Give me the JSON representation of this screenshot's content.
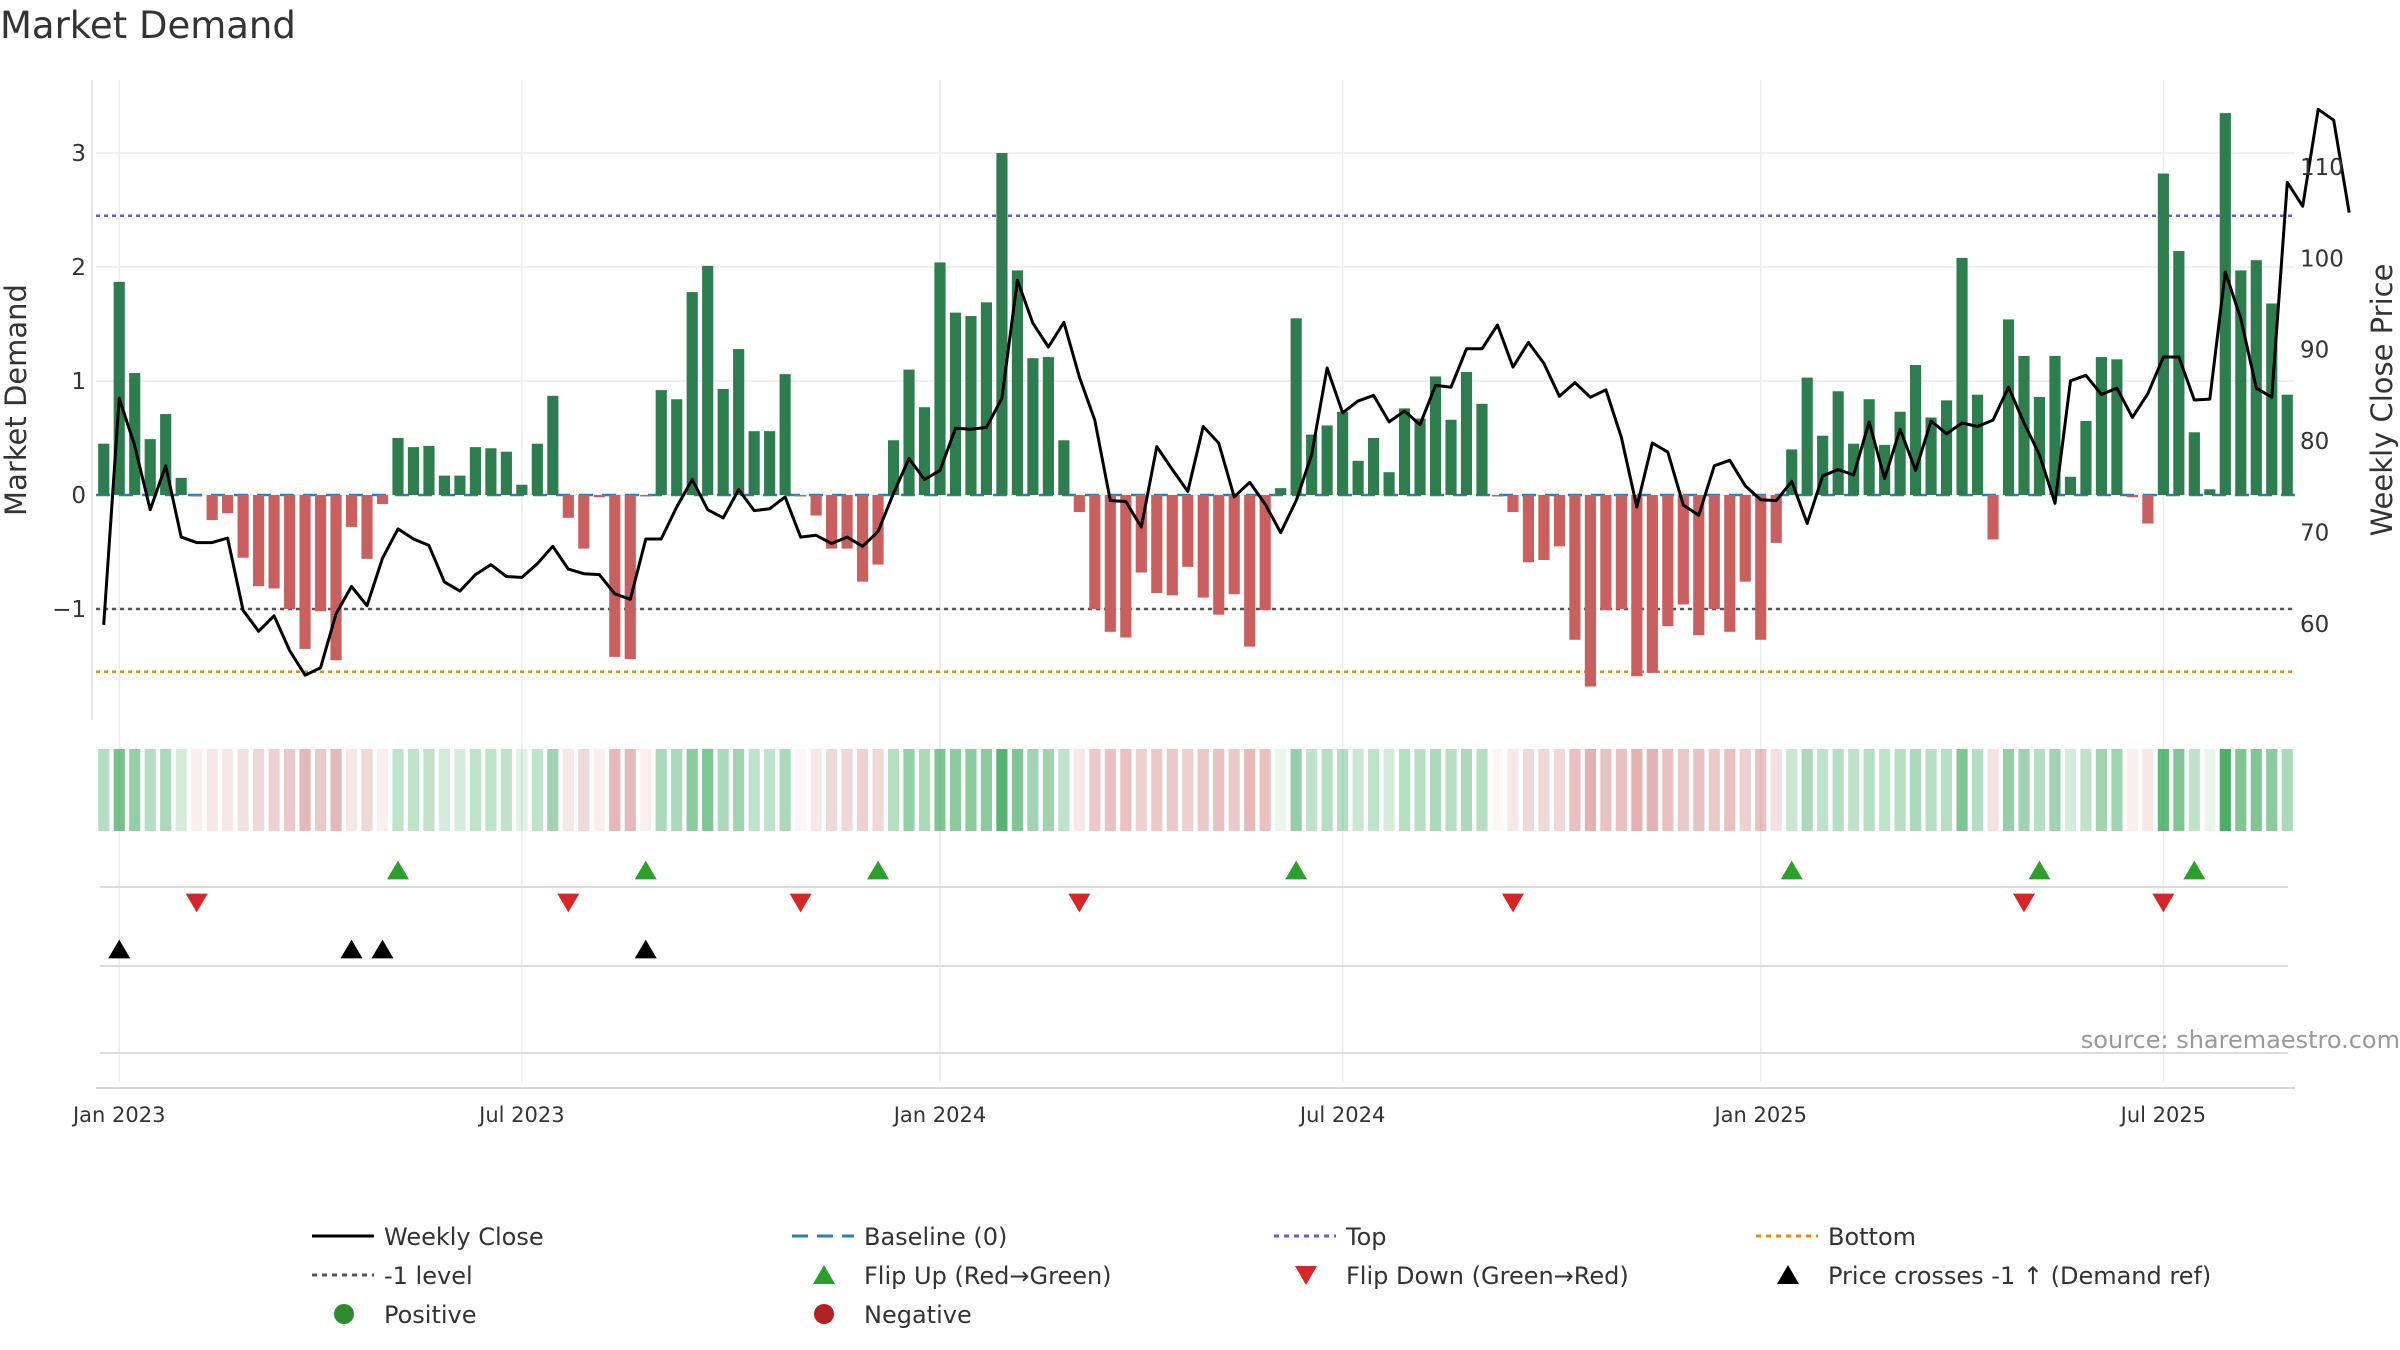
{
  "chart_data": {
    "type": "bar",
    "title": "Market Demand",
    "ylabel": "Market Demand",
    "y2label": "Weekly Close Price",
    "ylim": [
      -1.95,
      3.6
    ],
    "y2lim": [
      49.5,
      119.5
    ],
    "yticks": [
      "−1",
      "0",
      "1",
      "2",
      "3"
    ],
    "y2ticks": [
      "60",
      "70",
      "80",
      "90",
      "100",
      "110"
    ],
    "xticks": [
      "Jan 2023",
      "Jul 2023",
      "Jan 2024",
      "Jul 2024",
      "Jan 2025",
      "Jul 2025"
    ],
    "reference_lines": {
      "baseline": 0,
      "minus_one": -1,
      "top": 2.45,
      "bottom": -1.55
    },
    "demand": [
      0.45,
      1.87,
      1.07,
      0.49,
      0.71,
      0.15,
      -0.01,
      -0.22,
      -0.16,
      -0.55,
      -0.8,
      -0.82,
      -1.0,
      -1.35,
      -1.02,
      -1.45,
      -0.28,
      -0.56,
      -0.08,
      0.5,
      0.42,
      0.43,
      0.17,
      0.17,
      0.42,
      0.41,
      0.38,
      0.09,
      0.45,
      0.87,
      -0.2,
      -0.47,
      -0.02,
      -1.42,
      -1.44,
      -0.01,
      0.92,
      0.84,
      1.78,
      2.01,
      0.93,
      1.28,
      0.56,
      0.56,
      1.06,
      -0.01,
      -0.18,
      -0.47,
      -0.47,
      -0.76,
      -0.61,
      0.48,
      1.1,
      0.77,
      2.04,
      1.6,
      1.57,
      1.69,
      3.0,
      1.97,
      1.2,
      1.21,
      0.48,
      -0.15,
      -1.0,
      -1.2,
      -1.25,
      -0.68,
      -0.86,
      -0.88,
      -0.63,
      -0.9,
      -1.05,
      -0.87,
      -1.33,
      -1.01,
      0.06,
      1.55,
      0.53,
      0.61,
      0.73,
      0.3,
      0.5,
      0.2,
      0.76,
      0.67,
      1.04,
      0.66,
      1.08,
      0.8,
      -0.01,
      -0.15,
      -0.59,
      -0.57,
      -0.45,
      -1.27,
      -1.68,
      -1.01,
      -1.0,
      -1.59,
      -1.56,
      -1.15,
      -0.96,
      -1.23,
      -1.0,
      -1.2,
      -0.76,
      -1.27,
      -0.42,
      0.4,
      1.03,
      0.52,
      0.91,
      0.45,
      0.84,
      0.44,
      0.73,
      1.14,
      0.68,
      0.83,
      2.08,
      0.88,
      -0.39,
      1.54,
      1.22,
      0.86,
      1.22,
      0.16,
      0.65,
      1.21,
      1.19,
      -0.02,
      -0.25,
      2.82,
      2.14,
      0.55,
      0.05,
      3.35,
      1.97,
      2.06,
      1.68,
      0.88
    ],
    "weekly_close": [
      59.9,
      84.7,
      79.5,
      72.5,
      77.3,
      69.5,
      68.9,
      68.9,
      69.4,
      61.5,
      59.2,
      60.9,
      57.1,
      54.4,
      55.2,
      61.1,
      64.1,
      62.0,
      67.2,
      70.4,
      69.3,
      68.6,
      64.6,
      63.6,
      65.4,
      66.5,
      65.2,
      65.1,
      66.6,
      68.5,
      66.0,
      65.5,
      65.4,
      63.3,
      62.7,
      69.3,
      69.3,
      72.8,
      75.8,
      72.5,
      71.6,
      74.7,
      72.4,
      72.6,
      73.9,
      69.5,
      69.7,
      68.8,
      69.5,
      68.5,
      70.1,
      74.3,
      78.1,
      75.8,
      76.8,
      81.4,
      81.3,
      81.5,
      84.7,
      97.6,
      92.9,
      90.3,
      93.0,
      87.0,
      82.3,
      73.5,
      73.4,
      70.6,
      79.4,
      76.9,
      74.5,
      81.6,
      79.8,
      73.9,
      75.5,
      73.1,
      70.0,
      73.5,
      78.5,
      88.0,
      83.1,
      84.4,
      85.0,
      82.1,
      83.3,
      81.8,
      86.1,
      85.9,
      90.1,
      90.1,
      92.7,
      88.1,
      90.8,
      88.5,
      84.9,
      86.4,
      84.8,
      85.6,
      80.4,
      72.8,
      79.8,
      78.8,
      73.0,
      71.9,
      77.3,
      77.9,
      75.1,
      73.6,
      73.5,
      75.6,
      71.0,
      76.2,
      76.9,
      76.3,
      82.1,
      75.9,
      81.3,
      76.8,
      82.2,
      80.8,
      82.0,
      81.6,
      82.3,
      85.9,
      82.0,
      78.5,
      73.2,
      86.6,
      87.2,
      85.1,
      85.8,
      82.6,
      85.2,
      89.2,
      89.2,
      84.5,
      84.6,
      98.5,
      93.4,
      85.8,
      84.8,
      108.3,
      105.7,
      116.3,
      115.1,
      105.0
    ],
    "strip": [
      0.35,
      0.65,
      0.5,
      0.35,
      0.4,
      0.2,
      0.1,
      0.15,
      0.15,
      0.2,
      0.25,
      0.3,
      0.35,
      0.45,
      0.35,
      0.45,
      0.15,
      0.25,
      0.1,
      0.3,
      0.3,
      0.3,
      0.2,
      0.2,
      0.3,
      0.3,
      0.3,
      0.15,
      0.3,
      0.45,
      0.15,
      0.25,
      0.1,
      0.45,
      0.45,
      0.1,
      0.4,
      0.4,
      0.55,
      0.6,
      0.4,
      0.45,
      0.3,
      0.3,
      0.4,
      0.05,
      0.15,
      0.25,
      0.25,
      0.3,
      0.25,
      0.35,
      0.5,
      0.4,
      0.6,
      0.55,
      0.55,
      0.55,
      0.8,
      0.6,
      0.45,
      0.45,
      0.3,
      0.15,
      0.35,
      0.4,
      0.4,
      0.3,
      0.35,
      0.35,
      0.3,
      0.35,
      0.4,
      0.35,
      0.45,
      0.4,
      0.1,
      0.5,
      0.3,
      0.35,
      0.35,
      0.25,
      0.3,
      0.2,
      0.35,
      0.35,
      0.4,
      0.35,
      0.4,
      0.35,
      0.05,
      0.15,
      0.25,
      0.25,
      0.25,
      0.4,
      0.5,
      0.4,
      0.4,
      0.5,
      0.5,
      0.4,
      0.35,
      0.4,
      0.35,
      0.4,
      0.3,
      0.4,
      0.2,
      0.25,
      0.4,
      0.3,
      0.35,
      0.3,
      0.35,
      0.3,
      0.35,
      0.4,
      0.35,
      0.35,
      0.6,
      0.35,
      0.2,
      0.5,
      0.45,
      0.35,
      0.45,
      0.2,
      0.3,
      0.45,
      0.45,
      0.1,
      0.15,
      0.75,
      0.6,
      0.3,
      0.1,
      0.85,
      0.6,
      0.6,
      0.55,
      0.4
    ],
    "flip_up_weeks": [
      19,
      35,
      50,
      77,
      109,
      125,
      135
    ],
    "flip_down_weeks": [
      6,
      30,
      45,
      63,
      91,
      124,
      133
    ],
    "price_cross_weeks": [
      1,
      16,
      18,
      35
    ]
  },
  "legend": {
    "items": [
      {
        "label": "Weekly Close",
        "kind": "line-solid",
        "color": "#000000"
      },
      {
        "label": "Baseline (0)",
        "kind": "line-dashed",
        "color": "#2e7dba"
      },
      {
        "label": "Top",
        "kind": "line-dotted",
        "color": "#6a5acd"
      },
      {
        "label": "Bottom",
        "kind": "line-dotted",
        "color": "#e08a1e"
      },
      {
        "label": "-1 level",
        "kind": "line-dotted",
        "color": "#555555"
      },
      {
        "label": "Flip Up (Red→Green)",
        "kind": "tri-up",
        "color": "#2ca02c"
      },
      {
        "label": "Flip Down (Green→Red)",
        "kind": "tri-down",
        "color": "#d62728"
      },
      {
        "label": "Price crosses -1 ↑ (Demand ref)",
        "kind": "tri-up",
        "color": "#000000"
      },
      {
        "label": "Positive",
        "kind": "dot",
        "color": "#2e8b2e"
      },
      {
        "label": "Negative",
        "kind": "dot",
        "color": "#b22222"
      }
    ]
  },
  "source": "source: sharemaestro.com",
  "colors": {
    "positive_bar": "#2e7d4f",
    "negative_bar": "#c95f5f",
    "strip_green": "#2ca04f",
    "strip_red": "#c86464"
  }
}
